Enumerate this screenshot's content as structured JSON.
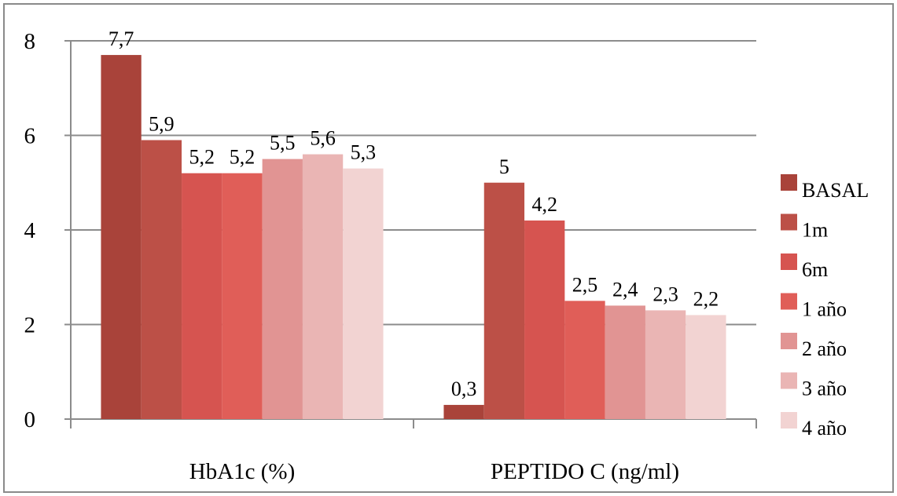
{
  "chart_data": {
    "type": "bar",
    "categories": [
      "HbA1c (%)",
      "PEPTIDO C (ng/ml)"
    ],
    "series": [
      {
        "name": "BASAL",
        "values": [
          7.7,
          0.3
        ],
        "color": "#A9433A"
      },
      {
        "name": "1m",
        "values": [
          5.9,
          5
        ],
        "color": "#BC5047"
      },
      {
        "name": "6m",
        "values": [
          5.2,
          4.2
        ],
        "color": "#D65450"
      },
      {
        "name": "1 año",
        "values": [
          5.2,
          2.5
        ],
        "color": "#E05E58"
      },
      {
        "name": "2 año",
        "values": [
          5.5,
          2.4
        ],
        "color": "#E19493"
      },
      {
        "name": "3 año",
        "values": [
          5.6,
          2.3
        ],
        "color": "#EAB5B4"
      },
      {
        "name": "4 año",
        "values": [
          5.3,
          2.2
        ],
        "color": "#F2D3D2"
      }
    ],
    "data_labels": [
      [
        "7,7",
        "0,3"
      ],
      [
        "5,9",
        "5"
      ],
      [
        "5,2",
        "4,2"
      ],
      [
        "5,2",
        "2,5"
      ],
      [
        "5,5",
        "2,4"
      ],
      [
        "5,6",
        "2,3"
      ],
      [
        "5,3",
        "2,2"
      ]
    ],
    "yticks": [
      "0",
      "2",
      "4",
      "6",
      "8"
    ],
    "ylim": [
      0,
      8
    ],
    "grid": true,
    "legend_position": "right",
    "gridline_color": "#8c8c8c",
    "axis_color": "#8c8c8c"
  }
}
